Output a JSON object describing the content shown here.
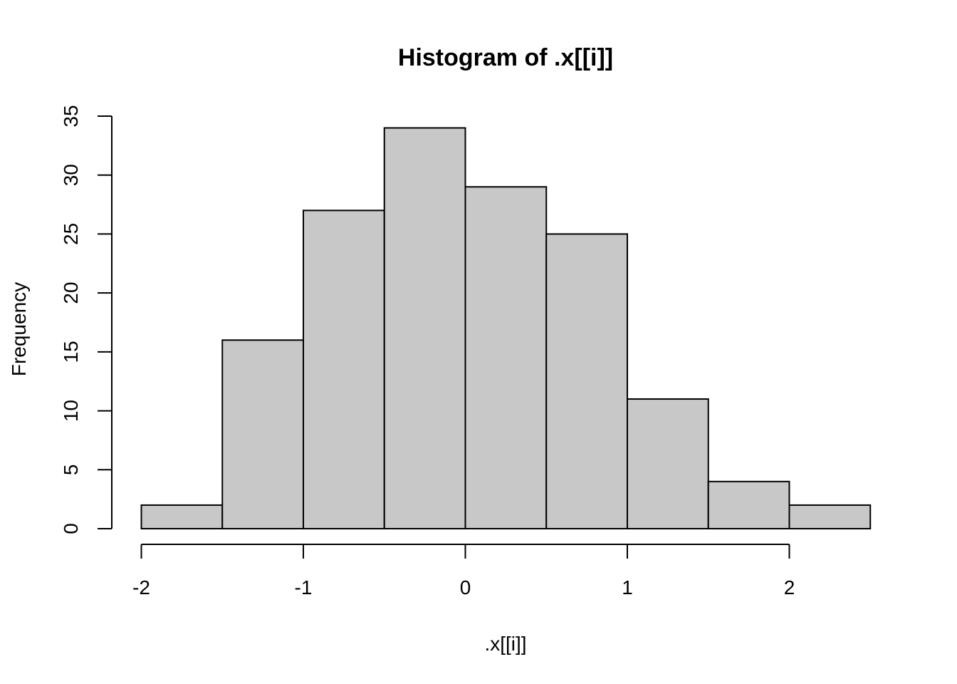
{
  "chart_data": {
    "type": "bar",
    "title": "Histogram of .x[[i]]",
    "xlabel": ".x[[i]]",
    "ylabel": "Frequency",
    "bins": [
      {
        "from": -2.0,
        "to": -1.5,
        "count": 2
      },
      {
        "from": -1.5,
        "to": -1.0,
        "count": 16
      },
      {
        "from": -1.0,
        "to": -0.5,
        "count": 27
      },
      {
        "from": -0.5,
        "to": 0.0,
        "count": 34
      },
      {
        "from": 0.0,
        "to": 0.5,
        "count": 29
      },
      {
        "from": 0.5,
        "to": 1.0,
        "count": 25
      },
      {
        "from": 1.0,
        "to": 1.5,
        "count": 11
      },
      {
        "from": 1.5,
        "to": 2.0,
        "count": 4
      },
      {
        "from": 2.0,
        "to": 2.5,
        "count": 2
      }
    ],
    "x_ticks": [
      "-2",
      "-1",
      "0",
      "1",
      "2"
    ],
    "y_ticks": [
      "0",
      "5",
      "10",
      "15",
      "20",
      "25",
      "30",
      "35"
    ],
    "xlim": [
      -2,
      2.5
    ],
    "ylim": [
      0,
      35
    ],
    "bar_color": "#c8c8c8",
    "grid": false
  }
}
